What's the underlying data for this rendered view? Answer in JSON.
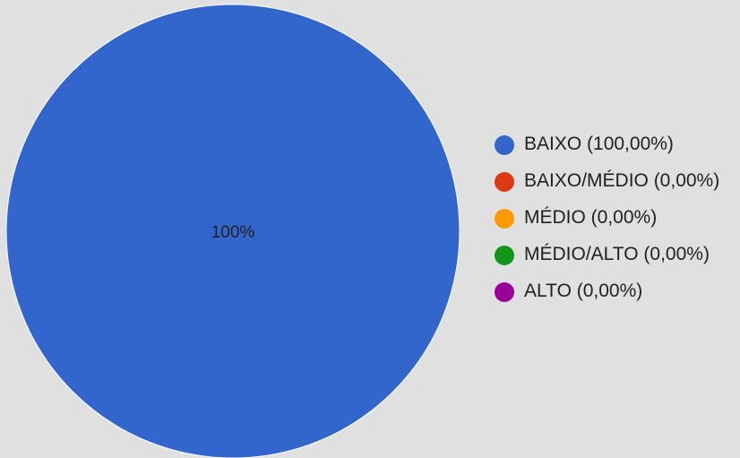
{
  "chart_data": {
    "type": "pie",
    "slices": [
      {
        "label": "BAIXO (100,00%)",
        "value": 100.0,
        "color": "#3366cc"
      },
      {
        "label": "BAIXO/MÉDIO (0,00%)",
        "value": 0.0,
        "color": "#dc3912"
      },
      {
        "label": "MÉDIO (0,00%)",
        "value": 0.0,
        "color": "#ff9900"
      },
      {
        "label": "MÉDIO/ALTO (0,00%)",
        "value": 0.0,
        "color": "#109618"
      },
      {
        "label": "ALTO (0,00%)",
        "value": 0.0,
        "color": "#990099"
      }
    ],
    "data_labels": [
      "100%"
    ],
    "legend_position": "right"
  },
  "colors": {
    "background": "#e0e0e0",
    "text": "#212121",
    "slice_border": "#ffffff"
  }
}
